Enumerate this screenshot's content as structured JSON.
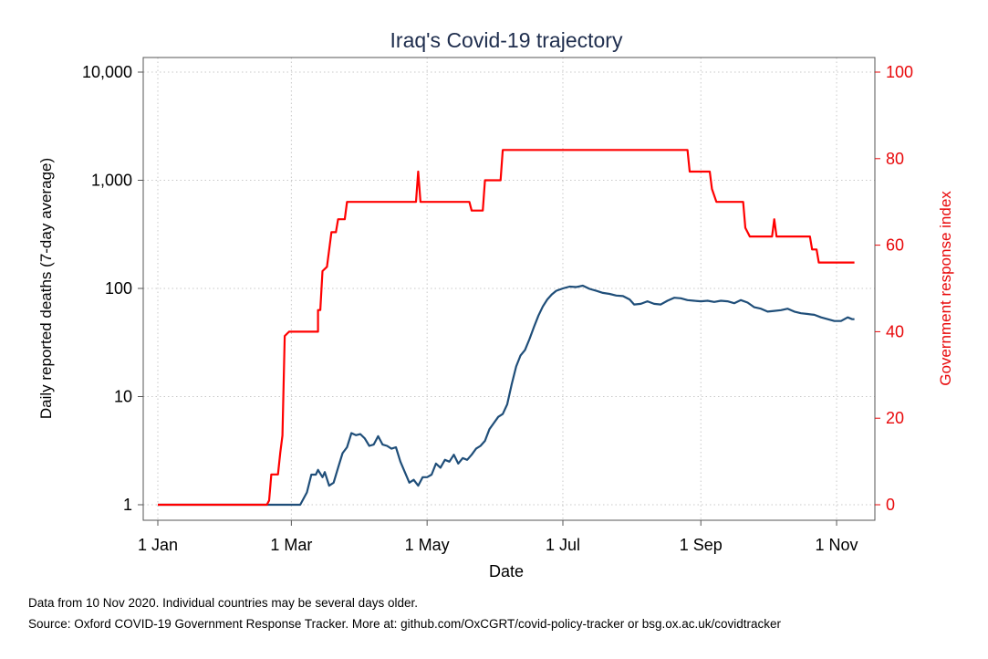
{
  "chart_data": {
    "type": "line",
    "title": "Iraq's Covid-19 trajectory",
    "xlabel": "Date",
    "ylabel_left": "Daily reported deaths (7-day average)",
    "ylabel_right": "Government response index",
    "x_ticks": [
      "1 Jan",
      "1 Mar",
      "1 May",
      "1 Jul",
      "1 Sep",
      "1 Nov"
    ],
    "y_left_ticks": [
      "1",
      "10",
      "100",
      "1,000",
      "10,000"
    ],
    "y_left_tick_values": [
      1,
      10,
      100,
      1000,
      10000
    ],
    "y_left_scale": "log",
    "y_left_range": [
      1,
      10000
    ],
    "y_right_ticks": [
      "0",
      "20",
      "40",
      "60",
      "80",
      "100"
    ],
    "y_right_tick_values": [
      0,
      20,
      40,
      60,
      80,
      100
    ],
    "y_right_range": [
      0,
      100
    ],
    "x_range": [
      "2020-01-01",
      "2020-11-10"
    ],
    "grid": true,
    "legend": "none",
    "colors": {
      "deaths": "#1f4e79",
      "response": "#ff0000",
      "grid": "#c8c8c8",
      "right_axis": "#e8080a"
    },
    "series": [
      {
        "axis": "left",
        "color": "#1f4e79",
        "points": [
          [
            "2020-01-01",
            1
          ],
          [
            "2020-03-05",
            1
          ],
          [
            "2020-03-08",
            1.3
          ],
          [
            "2020-03-10",
            1.9
          ],
          [
            "2020-03-12",
            1.9
          ],
          [
            "2020-03-13",
            2.1
          ],
          [
            "2020-03-15",
            1.8
          ],
          [
            "2020-03-16",
            2
          ],
          [
            "2020-03-18",
            1.5
          ],
          [
            "2020-03-20",
            1.6
          ],
          [
            "2020-03-22",
            2.2
          ],
          [
            "2020-03-24",
            3
          ],
          [
            "2020-03-26",
            3.4
          ],
          [
            "2020-03-28",
            4.6
          ],
          [
            "2020-03-30",
            4.4
          ],
          [
            "2020-04-01",
            4.5
          ],
          [
            "2020-04-03",
            4.1
          ],
          [
            "2020-04-05",
            3.5
          ],
          [
            "2020-04-07",
            3.6
          ],
          [
            "2020-04-09",
            4.3
          ],
          [
            "2020-04-11",
            3.6
          ],
          [
            "2020-04-13",
            3.5
          ],
          [
            "2020-04-15",
            3.3
          ],
          [
            "2020-04-17",
            3.4
          ],
          [
            "2020-04-19",
            2.5
          ],
          [
            "2020-04-21",
            2
          ],
          [
            "2020-04-23",
            1.6
          ],
          [
            "2020-04-25",
            1.7
          ],
          [
            "2020-04-27",
            1.5
          ],
          [
            "2020-04-29",
            1.8
          ],
          [
            "2020-05-01",
            1.8
          ],
          [
            "2020-05-03",
            1.9
          ],
          [
            "2020-05-05",
            2.4
          ],
          [
            "2020-05-07",
            2.2
          ],
          [
            "2020-05-09",
            2.6
          ],
          [
            "2020-05-11",
            2.5
          ],
          [
            "2020-05-13",
            2.9
          ],
          [
            "2020-05-15",
            2.4
          ],
          [
            "2020-05-17",
            2.7
          ],
          [
            "2020-05-19",
            2.6
          ],
          [
            "2020-05-21",
            2.9
          ],
          [
            "2020-05-23",
            3.3
          ],
          [
            "2020-05-25",
            3.5
          ],
          [
            "2020-05-27",
            3.9
          ],
          [
            "2020-05-29",
            5
          ],
          [
            "2020-05-31",
            5.7
          ],
          [
            "2020-06-02",
            6.5
          ],
          [
            "2020-06-04",
            6.9
          ],
          [
            "2020-06-06",
            8.5
          ],
          [
            "2020-06-08",
            13
          ],
          [
            "2020-06-10",
            19
          ],
          [
            "2020-06-12",
            24
          ],
          [
            "2020-06-14",
            27
          ],
          [
            "2020-06-16",
            34
          ],
          [
            "2020-06-18",
            44
          ],
          [
            "2020-06-20",
            56
          ],
          [
            "2020-06-22",
            68
          ],
          [
            "2020-06-24",
            79
          ],
          [
            "2020-06-26",
            88
          ],
          [
            "2020-06-28",
            95
          ],
          [
            "2020-07-01",
            100
          ],
          [
            "2020-07-04",
            104
          ],
          [
            "2020-07-07",
            103
          ],
          [
            "2020-07-10",
            106
          ],
          [
            "2020-07-13",
            99
          ],
          [
            "2020-07-16",
            95
          ],
          [
            "2020-07-19",
            91
          ],
          [
            "2020-07-22",
            89
          ],
          [
            "2020-07-25",
            86
          ],
          [
            "2020-07-28",
            85
          ],
          [
            "2020-07-31",
            79
          ],
          [
            "2020-08-02",
            71
          ],
          [
            "2020-08-05",
            72
          ],
          [
            "2020-08-08",
            76
          ],
          [
            "2020-08-11",
            72
          ],
          [
            "2020-08-14",
            71
          ],
          [
            "2020-08-17",
            77
          ],
          [
            "2020-08-20",
            82
          ],
          [
            "2020-08-23",
            81
          ],
          [
            "2020-08-26",
            78
          ],
          [
            "2020-08-29",
            77
          ],
          [
            "2020-09-01",
            76
          ],
          [
            "2020-09-04",
            77
          ],
          [
            "2020-09-07",
            75
          ],
          [
            "2020-09-10",
            77
          ],
          [
            "2020-09-13",
            76
          ],
          [
            "2020-09-16",
            73
          ],
          [
            "2020-09-19",
            78
          ],
          [
            "2020-09-22",
            74
          ],
          [
            "2020-09-25",
            67
          ],
          [
            "2020-09-28",
            65
          ],
          [
            "2020-10-01",
            61
          ],
          [
            "2020-10-04",
            62
          ],
          [
            "2020-10-07",
            63
          ],
          [
            "2020-10-10",
            65
          ],
          [
            "2020-10-13",
            61
          ],
          [
            "2020-10-16",
            59
          ],
          [
            "2020-10-19",
            58
          ],
          [
            "2020-10-22",
            57
          ],
          [
            "2020-10-25",
            54
          ],
          [
            "2020-10-28",
            52
          ],
          [
            "2020-10-31",
            50
          ],
          [
            "2020-11-03",
            50
          ],
          [
            "2020-11-06",
            54
          ],
          [
            "2020-11-08",
            52
          ],
          [
            "2020-11-09",
            52
          ]
        ]
      },
      {
        "axis": "right",
        "color": "#ff0000",
        "points": [
          [
            "2020-01-01",
            0
          ],
          [
            "2020-02-19",
            0
          ],
          [
            "2020-02-20",
            1
          ],
          [
            "2020-02-21",
            7
          ],
          [
            "2020-02-24",
            7
          ],
          [
            "2020-02-25",
            12
          ],
          [
            "2020-02-26",
            16
          ],
          [
            "2020-02-27",
            39
          ],
          [
            "2020-02-29",
            40
          ],
          [
            "2020-03-13",
            40
          ],
          [
            "2020-03-13",
            45
          ],
          [
            "2020-03-14",
            45
          ],
          [
            "2020-03-15",
            54
          ],
          [
            "2020-03-17",
            55
          ],
          [
            "2020-03-19",
            63
          ],
          [
            "2020-03-21",
            63
          ],
          [
            "2020-03-22",
            66
          ],
          [
            "2020-03-25",
            66
          ],
          [
            "2020-03-26",
            70
          ],
          [
            "2020-04-26",
            70
          ],
          [
            "2020-04-27",
            77
          ],
          [
            "2020-04-28",
            70
          ],
          [
            "2020-05-20",
            70
          ],
          [
            "2020-05-21",
            68
          ],
          [
            "2020-05-26",
            68
          ],
          [
            "2020-05-27",
            75
          ],
          [
            "2020-06-03",
            75
          ],
          [
            "2020-06-04",
            82
          ],
          [
            "2020-08-26",
            82
          ],
          [
            "2020-08-27",
            77
          ],
          [
            "2020-09-05",
            77
          ],
          [
            "2020-09-06",
            73
          ],
          [
            "2020-09-08",
            70
          ],
          [
            "2020-09-20",
            70
          ],
          [
            "2020-09-21",
            64
          ],
          [
            "2020-09-23",
            62
          ],
          [
            "2020-10-03",
            62
          ],
          [
            "2020-10-04",
            66
          ],
          [
            "2020-10-05",
            62
          ],
          [
            "2020-10-20",
            62
          ],
          [
            "2020-10-21",
            59
          ],
          [
            "2020-10-23",
            59
          ],
          [
            "2020-10-24",
            56
          ],
          [
            "2020-11-09",
            56
          ]
        ]
      }
    ]
  },
  "footer": {
    "note1": "Data from 10 Nov 2020. Individual countries may be several days older.",
    "note2": "Source: Oxford COVID-19 Government Response Tracker. More at: github.com/OxCGRT/covid-policy-tracker or bsg.ox.ac.uk/covidtracker"
  }
}
